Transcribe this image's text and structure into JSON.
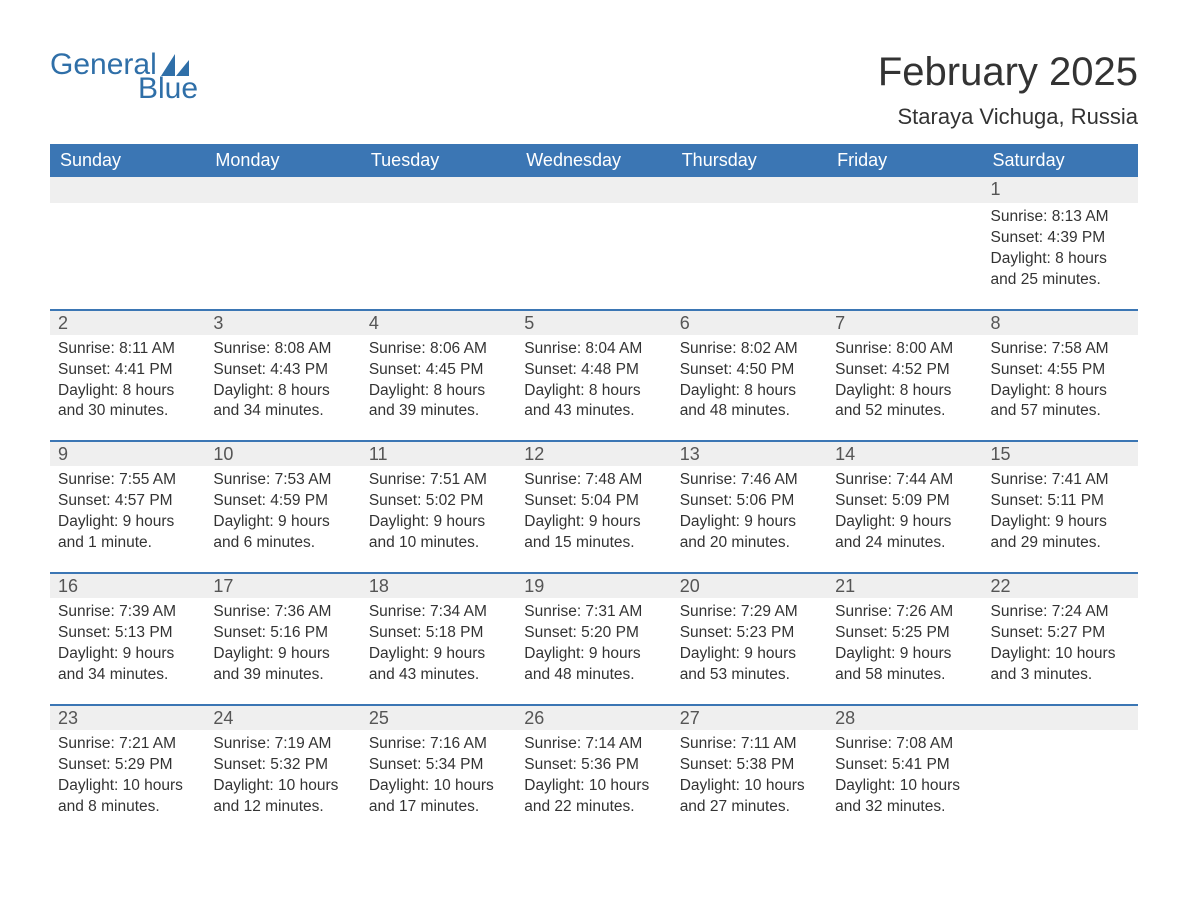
{
  "logo": {
    "text1": "General",
    "text2": "Blue",
    "brand_color": "#2f6fa8"
  },
  "title": "February 2025",
  "location": "Staraya Vichuga, Russia",
  "colors": {
    "header_bg": "#3b76b4",
    "header_text": "#ffffff",
    "band_bg": "#efefef",
    "band_border": "#3b76b4",
    "text": "#333333",
    "page_bg": "#ffffff"
  },
  "day_headers": [
    "Sunday",
    "Monday",
    "Tuesday",
    "Wednesday",
    "Thursday",
    "Friday",
    "Saturday"
  ],
  "weeks": [
    [
      {
        "num": "",
        "sunrise": "",
        "sunset": "",
        "daylight": ""
      },
      {
        "num": "",
        "sunrise": "",
        "sunset": "",
        "daylight": ""
      },
      {
        "num": "",
        "sunrise": "",
        "sunset": "",
        "daylight": ""
      },
      {
        "num": "",
        "sunrise": "",
        "sunset": "",
        "daylight": ""
      },
      {
        "num": "",
        "sunrise": "",
        "sunset": "",
        "daylight": ""
      },
      {
        "num": "",
        "sunrise": "",
        "sunset": "",
        "daylight": ""
      },
      {
        "num": "1",
        "sunrise": "Sunrise: 8:13 AM",
        "sunset": "Sunset: 4:39 PM",
        "daylight": "Daylight: 8 hours and 25 minutes."
      }
    ],
    [
      {
        "num": "2",
        "sunrise": "Sunrise: 8:11 AM",
        "sunset": "Sunset: 4:41 PM",
        "daylight": "Daylight: 8 hours and 30 minutes."
      },
      {
        "num": "3",
        "sunrise": "Sunrise: 8:08 AM",
        "sunset": "Sunset: 4:43 PM",
        "daylight": "Daylight: 8 hours and 34 minutes."
      },
      {
        "num": "4",
        "sunrise": "Sunrise: 8:06 AM",
        "sunset": "Sunset: 4:45 PM",
        "daylight": "Daylight: 8 hours and 39 minutes."
      },
      {
        "num": "5",
        "sunrise": "Sunrise: 8:04 AM",
        "sunset": "Sunset: 4:48 PM",
        "daylight": "Daylight: 8 hours and 43 minutes."
      },
      {
        "num": "6",
        "sunrise": "Sunrise: 8:02 AM",
        "sunset": "Sunset: 4:50 PM",
        "daylight": "Daylight: 8 hours and 48 minutes."
      },
      {
        "num": "7",
        "sunrise": "Sunrise: 8:00 AM",
        "sunset": "Sunset: 4:52 PM",
        "daylight": "Daylight: 8 hours and 52 minutes."
      },
      {
        "num": "8",
        "sunrise": "Sunrise: 7:58 AM",
        "sunset": "Sunset: 4:55 PM",
        "daylight": "Daylight: 8 hours and 57 minutes."
      }
    ],
    [
      {
        "num": "9",
        "sunrise": "Sunrise: 7:55 AM",
        "sunset": "Sunset: 4:57 PM",
        "daylight": "Daylight: 9 hours and 1 minute."
      },
      {
        "num": "10",
        "sunrise": "Sunrise: 7:53 AM",
        "sunset": "Sunset: 4:59 PM",
        "daylight": "Daylight: 9 hours and 6 minutes."
      },
      {
        "num": "11",
        "sunrise": "Sunrise: 7:51 AM",
        "sunset": "Sunset: 5:02 PM",
        "daylight": "Daylight: 9 hours and 10 minutes."
      },
      {
        "num": "12",
        "sunrise": "Sunrise: 7:48 AM",
        "sunset": "Sunset: 5:04 PM",
        "daylight": "Daylight: 9 hours and 15 minutes."
      },
      {
        "num": "13",
        "sunrise": "Sunrise: 7:46 AM",
        "sunset": "Sunset: 5:06 PM",
        "daylight": "Daylight: 9 hours and 20 minutes."
      },
      {
        "num": "14",
        "sunrise": "Sunrise: 7:44 AM",
        "sunset": "Sunset: 5:09 PM",
        "daylight": "Daylight: 9 hours and 24 minutes."
      },
      {
        "num": "15",
        "sunrise": "Sunrise: 7:41 AM",
        "sunset": "Sunset: 5:11 PM",
        "daylight": "Daylight: 9 hours and 29 minutes."
      }
    ],
    [
      {
        "num": "16",
        "sunrise": "Sunrise: 7:39 AM",
        "sunset": "Sunset: 5:13 PM",
        "daylight": "Daylight: 9 hours and 34 minutes."
      },
      {
        "num": "17",
        "sunrise": "Sunrise: 7:36 AM",
        "sunset": "Sunset: 5:16 PM",
        "daylight": "Daylight: 9 hours and 39 minutes."
      },
      {
        "num": "18",
        "sunrise": "Sunrise: 7:34 AM",
        "sunset": "Sunset: 5:18 PM",
        "daylight": "Daylight: 9 hours and 43 minutes."
      },
      {
        "num": "19",
        "sunrise": "Sunrise: 7:31 AM",
        "sunset": "Sunset: 5:20 PM",
        "daylight": "Daylight: 9 hours and 48 minutes."
      },
      {
        "num": "20",
        "sunrise": "Sunrise: 7:29 AM",
        "sunset": "Sunset: 5:23 PM",
        "daylight": "Daylight: 9 hours and 53 minutes."
      },
      {
        "num": "21",
        "sunrise": "Sunrise: 7:26 AM",
        "sunset": "Sunset: 5:25 PM",
        "daylight": "Daylight: 9 hours and 58 minutes."
      },
      {
        "num": "22",
        "sunrise": "Sunrise: 7:24 AM",
        "sunset": "Sunset: 5:27 PM",
        "daylight": "Daylight: 10 hours and 3 minutes."
      }
    ],
    [
      {
        "num": "23",
        "sunrise": "Sunrise: 7:21 AM",
        "sunset": "Sunset: 5:29 PM",
        "daylight": "Daylight: 10 hours and 8 minutes."
      },
      {
        "num": "24",
        "sunrise": "Sunrise: 7:19 AM",
        "sunset": "Sunset: 5:32 PM",
        "daylight": "Daylight: 10 hours and 12 minutes."
      },
      {
        "num": "25",
        "sunrise": "Sunrise: 7:16 AM",
        "sunset": "Sunset: 5:34 PM",
        "daylight": "Daylight: 10 hours and 17 minutes."
      },
      {
        "num": "26",
        "sunrise": "Sunrise: 7:14 AM",
        "sunset": "Sunset: 5:36 PM",
        "daylight": "Daylight: 10 hours and 22 minutes."
      },
      {
        "num": "27",
        "sunrise": "Sunrise: 7:11 AM",
        "sunset": "Sunset: 5:38 PM",
        "daylight": "Daylight: 10 hours and 27 minutes."
      },
      {
        "num": "28",
        "sunrise": "Sunrise: 7:08 AM",
        "sunset": "Sunset: 5:41 PM",
        "daylight": "Daylight: 10 hours and 32 minutes."
      },
      {
        "num": "",
        "sunrise": "",
        "sunset": "",
        "daylight": ""
      }
    ]
  ]
}
